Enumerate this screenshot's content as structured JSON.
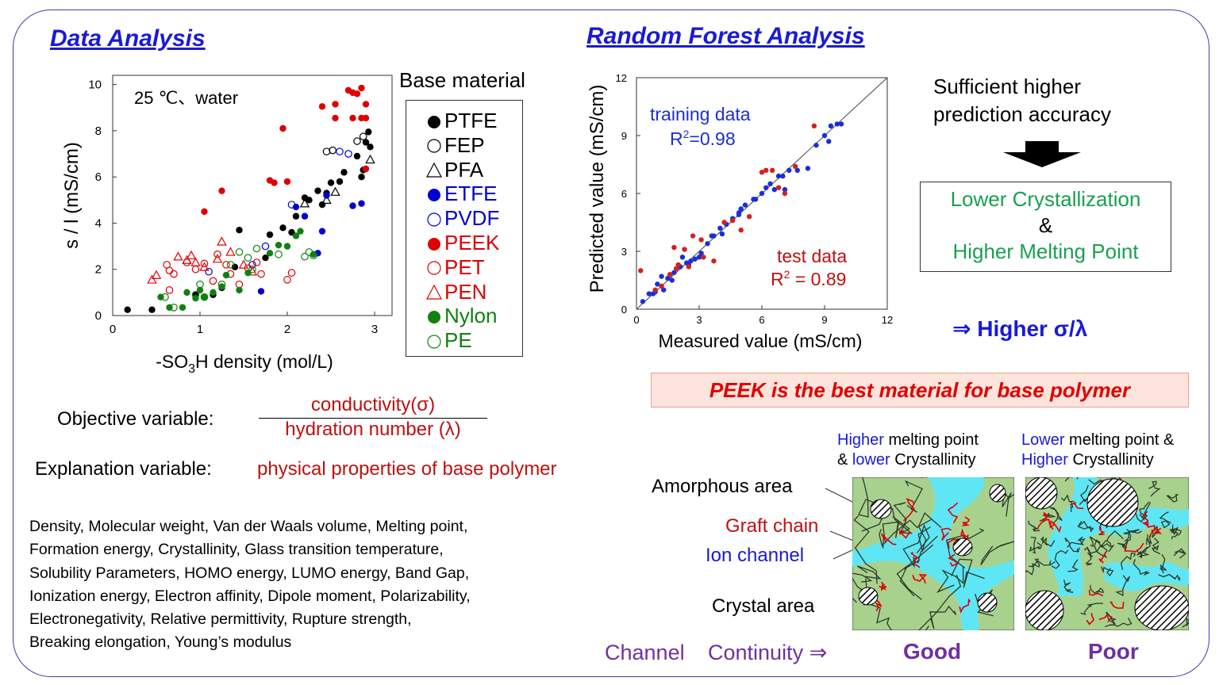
{
  "titles": {
    "data_analysis": "Data Analysis",
    "random_forest": "Random Forest Analysis"
  },
  "chart_data": [
    {
      "type": "scatter",
      "annotation": "25 ℃、water",
      "xlabel": "-SO3H density (mol/L)",
      "xlabel_main": "-SO",
      "xlabel_sub": "3",
      "xlabel_tail": "H density (mol/L)",
      "ylabel": "s / l (mS/cm)",
      "xlim": [
        0,
        3.2
      ],
      "ylim": [
        0,
        10.4
      ],
      "xticks": [
        "0",
        "1",
        "2",
        "3"
      ],
      "yticks": [
        "0",
        "2",
        "4",
        "6",
        "8",
        "10"
      ],
      "legend_title": "Base material",
      "legend_placement": "right",
      "series": [
        {
          "name": "PTFE",
          "marker": "filled-circle",
          "color": "#000000",
          "points": [
            [
              0.17,
              0.25
            ],
            [
              0.45,
              0.25
            ],
            [
              0.95,
              0.9
            ],
            [
              1.15,
              0.9
            ],
            [
              1.25,
              1.2
            ],
            [
              1.4,
              2.1
            ],
            [
              1.45,
              3.7
            ],
            [
              1.75,
              2.5
            ],
            [
              1.8,
              3.5
            ],
            [
              1.95,
              3.8
            ],
            [
              2.05,
              3.6
            ],
            [
              2.1,
              4.3
            ],
            [
              2.2,
              5.1
            ],
            [
              2.25,
              5.0
            ],
            [
              2.35,
              5.4
            ],
            [
              2.4,
              4.8
            ],
            [
              2.45,
              5.3
            ],
            [
              2.5,
              5.75
            ],
            [
              2.6,
              5.8
            ],
            [
              2.65,
              6.2
            ],
            [
              2.8,
              6.9
            ],
            [
              2.85,
              6.0
            ],
            [
              2.87,
              6.3
            ],
            [
              2.9,
              7.5
            ],
            [
              2.93,
              7.95
            ],
            [
              2.95,
              7.3
            ]
          ]
        },
        {
          "name": "FEP",
          "marker": "open-circle",
          "color": "#000000",
          "points": [
            [
              2.45,
              7.1
            ],
            [
              2.52,
              7.15
            ],
            [
              2.8,
              7.55
            ],
            [
              2.87,
              7.75
            ]
          ]
        },
        {
          "name": "PFA",
          "marker": "open-triangle",
          "color": "#000000",
          "points": [
            [
              2.2,
              4.85
            ],
            [
              2.45,
              5.0
            ],
            [
              2.55,
              5.35
            ],
            [
              2.95,
              6.75
            ]
          ]
        },
        {
          "name": "ETFE",
          "marker": "filled-circle",
          "color": "#0000d0",
          "points": [
            [
              1.7,
              1.05
            ],
            [
              2.1,
              4.7
            ],
            [
              2.2,
              4.3
            ],
            [
              2.35,
              2.7
            ],
            [
              2.4,
              3.65
            ],
            [
              2.45,
              5.2
            ],
            [
              2.75,
              4.75
            ],
            [
              2.85,
              4.85
            ]
          ]
        },
        {
          "name": "PVDF",
          "marker": "open-circle",
          "color": "#0000d0",
          "points": [
            [
              1.1,
              1.9
            ],
            [
              1.6,
              2.2
            ],
            [
              1.75,
              3.0
            ],
            [
              2.05,
              4.8
            ],
            [
              2.6,
              7.1
            ],
            [
              2.7,
              7.0
            ]
          ]
        },
        {
          "name": "PEEK",
          "marker": "filled-circle",
          "color": "#e00000",
          "points": [
            [
              1.05,
              4.5
            ],
            [
              1.25,
              5.4
            ],
            [
              1.8,
              5.85
            ],
            [
              1.85,
              5.75
            ],
            [
              1.95,
              8.1
            ],
            [
              2.0,
              5.8
            ],
            [
              2.4,
              9.05
            ],
            [
              2.55,
              9.15
            ],
            [
              2.55,
              8.55
            ],
            [
              2.7,
              9.75
            ],
            [
              2.75,
              9.65
            ],
            [
              2.75,
              8.55
            ],
            [
              2.8,
              9.6
            ],
            [
              2.85,
              9.85
            ],
            [
              2.9,
              9.15
            ],
            [
              2.9,
              8.55
            ],
            [
              2.9,
              6.35
            ],
            [
              2.85,
              8.55
            ]
          ]
        },
        {
          "name": "PET",
          "marker": "open-circle",
          "color": "#e00000",
          "points": [
            [
              0.62,
              2.2
            ],
            [
              0.65,
              1.95
            ],
            [
              0.7,
              1.8
            ],
            [
              0.65,
              1.1
            ],
            [
              0.85,
              2.3
            ],
            [
              0.95,
              2.0
            ],
            [
              1.05,
              2.25
            ],
            [
              1.15,
              1.5
            ],
            [
              1.2,
              2.65
            ],
            [
              1.3,
              2.2
            ],
            [
              1.35,
              1.8
            ],
            [
              1.45,
              1.35
            ],
            [
              1.55,
              2.05
            ],
            [
              1.65,
              2.3
            ],
            [
              1.7,
              1.8
            ],
            [
              2.05,
              1.85
            ],
            [
              2.0,
              1.55
            ]
          ]
        },
        {
          "name": "PEN",
          "marker": "open-triangle",
          "color": "#e00000",
          "points": [
            [
              0.45,
              1.55
            ],
            [
              0.5,
              1.75
            ],
            [
              0.75,
              2.55
            ],
            [
              0.85,
              2.4
            ],
            [
              0.9,
              2.6
            ],
            [
              0.95,
              2.3
            ],
            [
              1.05,
              2.1
            ],
            [
              1.2,
              2.45
            ],
            [
              1.25,
              3.2
            ],
            [
              1.35,
              2.75
            ],
            [
              1.5,
              2.2
            ],
            [
              1.6,
              1.9
            ]
          ]
        },
        {
          "name": "Nylon",
          "marker": "filled-circle",
          "color": "#108010",
          "points": [
            [
              0.55,
              0.8
            ],
            [
              0.65,
              0.35
            ],
            [
              0.8,
              0.35
            ],
            [
              0.85,
              1.0
            ],
            [
              0.95,
              0.75
            ],
            [
              1.0,
              1.1
            ],
            [
              1.05,
              0.8
            ],
            [
              1.15,
              1.0
            ],
            [
              1.25,
              1.25
            ],
            [
              1.3,
              1.75
            ],
            [
              1.45,
              1.1
            ],
            [
              1.55,
              1.85
            ],
            [
              1.8,
              2.7
            ],
            [
              1.9,
              3.05
            ],
            [
              2.0,
              3.0
            ],
            [
              2.1,
              3.45
            ],
            [
              2.15,
              3.65
            ],
            [
              2.3,
              2.65
            ]
          ]
        },
        {
          "name": "PE",
          "marker": "open-circle",
          "color": "#108010",
          "points": [
            [
              0.6,
              0.8
            ],
            [
              0.7,
              0.35
            ],
            [
              0.95,
              0.9
            ],
            [
              1.0,
              1.35
            ],
            [
              1.05,
              0.8
            ],
            [
              1.25,
              1.35
            ],
            [
              1.35,
              2.2
            ],
            [
              1.45,
              2.75
            ],
            [
              1.55,
              2.5
            ],
            [
              1.6,
              2.0
            ],
            [
              1.65,
              2.9
            ],
            [
              1.9,
              2.65
            ],
            [
              2.2,
              2.55
            ],
            [
              2.25,
              2.75
            ],
            [
              2.3,
              2.6
            ]
          ]
        }
      ]
    },
    {
      "type": "scatter",
      "xlabel": "Measured value (mS/cm)",
      "ylabel": "Predicted value (mS/cm)",
      "xlim": [
        0,
        12
      ],
      "ylim": [
        0,
        12
      ],
      "xticks": [
        "0",
        "3",
        "6",
        "9",
        "12"
      ],
      "yticks": [
        "0",
        "3",
        "6",
        "9",
        "12"
      ],
      "diagonal": true,
      "training_label": "training data",
      "training_r2_prefix": "R",
      "training_r2_value": "=0.98",
      "test_label": "test data",
      "test_r2_prefix": "R",
      "test_r2_value": " = 0.89",
      "series": [
        {
          "name": "training data",
          "color": "#1a2fd6",
          "points": [
            [
              0.3,
              0.4
            ],
            [
              0.6,
              0.8
            ],
            [
              0.8,
              0.8
            ],
            [
              1.0,
              1.3
            ],
            [
              1.2,
              1.7
            ],
            [
              1.5,
              1.6
            ],
            [
              1.8,
              1.9
            ],
            [
              2.1,
              2.2
            ],
            [
              2.4,
              2.4
            ],
            [
              2.6,
              2.5
            ],
            [
              2.8,
              2.6
            ],
            [
              3.1,
              2.9
            ],
            [
              3.4,
              3.4
            ],
            [
              3.7,
              3.8
            ],
            [
              4.0,
              4.2
            ],
            [
              4.3,
              4.4
            ],
            [
              4.6,
              4.7
            ],
            [
              4.9,
              5.0
            ],
            [
              5.2,
              5.4
            ],
            [
              5.6,
              5.7
            ],
            [
              6.0,
              6.0
            ],
            [
              6.4,
              6.5
            ],
            [
              6.8,
              6.9
            ],
            [
              7.3,
              7.2
            ],
            [
              7.7,
              7.2
            ],
            [
              8.2,
              7.3
            ],
            [
              8.6,
              8.5
            ],
            [
              9.0,
              9.0
            ],
            [
              9.3,
              9.5
            ],
            [
              9.6,
              9.6
            ],
            [
              9.8,
              9.6
            ],
            [
              1.3,
              1.0
            ],
            [
              2.2,
              2.7
            ],
            [
              3.6,
              3.8
            ],
            [
              4.1,
              3.9
            ],
            [
              4.9,
              4.9
            ],
            [
              5.7,
              5.7
            ],
            [
              6.2,
              6.3
            ],
            [
              7.0,
              6.9
            ],
            [
              9.2,
              8.7
            ],
            [
              0.9,
              0.9
            ],
            [
              1.7,
              1.5
            ],
            [
              2.5,
              2.3
            ],
            [
              3.0,
              2.7
            ],
            [
              5.0,
              5.2
            ],
            [
              6.6,
              6.2
            ],
            [
              7.1,
              6.2
            ]
          ]
        },
        {
          "name": "test data",
          "color": "#d42020",
          "points": [
            [
              0.2,
              2.0
            ],
            [
              0.9,
              1.0
            ],
            [
              1.6,
              1.8
            ],
            [
              1.8,
              3.2
            ],
            [
              2.0,
              2.3
            ],
            [
              2.3,
              3.1
            ],
            [
              2.7,
              3.8
            ],
            [
              3.1,
              3.6
            ],
            [
              3.7,
              2.5
            ],
            [
              4.2,
              4.5
            ],
            [
              4.6,
              4.6
            ],
            [
              5.0,
              4.1
            ],
            [
              5.4,
              4.8
            ],
            [
              6.0,
              7.1
            ],
            [
              6.2,
              7.2
            ],
            [
              6.5,
              7.2
            ],
            [
              6.8,
              6.3
            ],
            [
              7.1,
              6.0
            ],
            [
              7.6,
              7.4
            ],
            [
              8.5,
              9.5
            ],
            [
              1.9,
              2.1
            ],
            [
              2.5,
              2.2
            ],
            [
              3.2,
              2.7
            ],
            [
              1.2,
              1.2
            ]
          ]
        }
      ]
    }
  ],
  "objective": {
    "label": "Objective variable:",
    "numerator": "conductivity(σ)",
    "denominator": "hydration number (λ)"
  },
  "explanation": {
    "label": "Explanation variable:",
    "value": "physical properties of base polymer"
  },
  "properties_lines": [
    "Density, Molecular weight, Van der Waals volume, Melting point,",
    "Formation energy, Crystallinity, Glass transition temperature,",
    "Solubility Parameters, HOMO energy, LUMO energy, Band Gap,",
    "Ionization energy, Electron affinity, Dipole moment, Polarizability,",
    "Electronegativity, Relative permittivity, Rupture strength,",
    "Breaking elongation, Young’s modulus"
  ],
  "accuracy": {
    "line1": "Sufficient higher",
    "line2": "prediction accuracy"
  },
  "result": {
    "line1": "Lower Crystallization",
    "amp": "&",
    "line2": "Higher Melting Point"
  },
  "higher_ratio": "⇒ Higher σ/λ",
  "peek_message": "PEEK is the best material for base polymer",
  "morphology": {
    "left_caption_a1": "Higher",
    "left_caption_a2": " melting point",
    "left_caption_b1": "& ",
    "left_caption_b2": "lower",
    "left_caption_b3": " Crystallinity",
    "right_caption_a1": "Lower",
    "right_caption_a2": " melting point &",
    "right_caption_b1": "Higher",
    "right_caption_b2": " Crystallinity",
    "amorphous": "Amorphous area",
    "graft": "Graft chain",
    "ion": "Ion channel",
    "crystal": "Crystal area",
    "channel": "Channel",
    "continuity": "Continuity ⇒",
    "good": "Good",
    "poor": "Poor"
  },
  "colors": {
    "title_blue": "#1a1ad6",
    "red": "#e00000",
    "dark_red": "#c01010",
    "green": "#18a050",
    "purple": "#7030a0",
    "matrix_green": "#a9d18e",
    "channel_cyan": "#5fe6f5"
  }
}
